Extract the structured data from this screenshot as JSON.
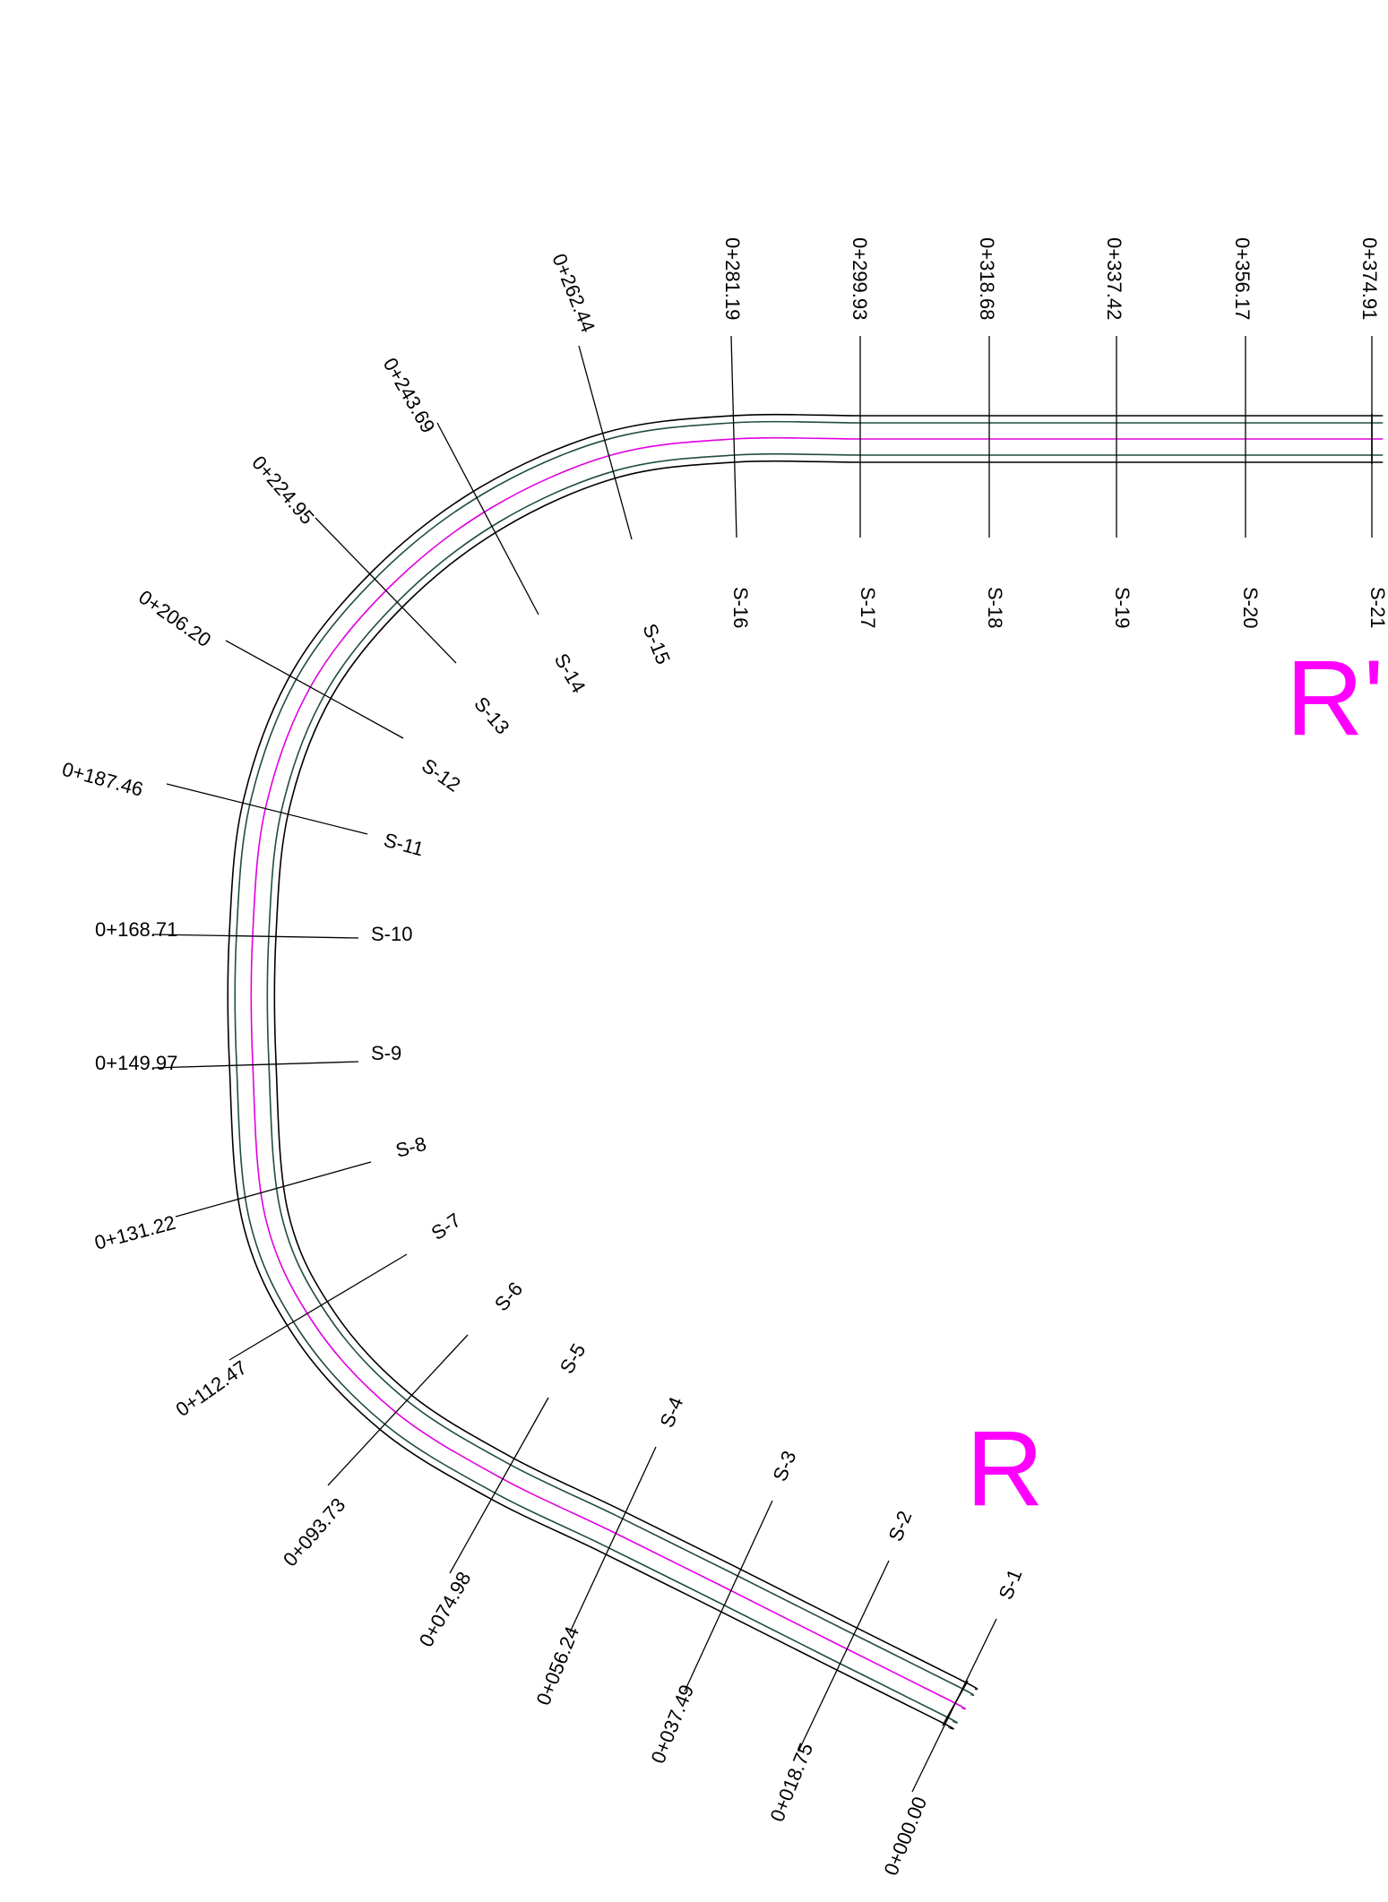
{
  "drawing": {
    "colors": {
      "centerline": "#e000e0",
      "edge_outer": "#000000",
      "edge_inner": "#1f4f3f",
      "leader": "#000000",
      "label": "#000000",
      "marker": "#ff00ff"
    },
    "markers": [
      "R'",
      "R"
    ],
    "sections": [
      {
        "id": "S-1",
        "station": "0+000.00"
      },
      {
        "id": "S-2",
        "station": "0+018.75"
      },
      {
        "id": "S-3",
        "station": "0+037.49"
      },
      {
        "id": "S-4",
        "station": "0+056.24"
      },
      {
        "id": "S-5",
        "station": "0+074.98"
      },
      {
        "id": "S-6",
        "station": "0+093.73"
      },
      {
        "id": "S-7",
        "station": "0+112.47"
      },
      {
        "id": "S-8",
        "station": "0+131.22"
      },
      {
        "id": "S-9",
        "station": "0+149.97"
      },
      {
        "id": "S-10",
        "station": "0+168.71"
      },
      {
        "id": "S-11",
        "station": "0+187.46"
      },
      {
        "id": "S-12",
        "station": "0+206.20"
      },
      {
        "id": "S-13",
        "station": "0+224.95"
      },
      {
        "id": "S-14",
        "station": "0+243.69"
      },
      {
        "id": "S-15",
        "station": "0+262.44"
      },
      {
        "id": "S-16",
        "station": "0+281.19"
      },
      {
        "id": "S-17",
        "station": "0+299.93"
      },
      {
        "id": "S-18",
        "station": "0+318.68"
      },
      {
        "id": "S-19",
        "station": "0+337.42"
      },
      {
        "id": "S-20",
        "station": "0+356.17"
      },
      {
        "id": "S-21",
        "station": "0+374.91"
      }
    ]
  }
}
